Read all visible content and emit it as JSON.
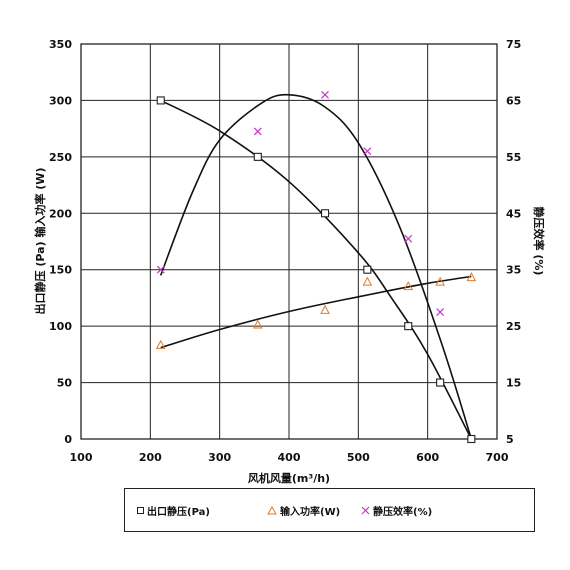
{
  "chart_data": {
    "type": "line",
    "title": "",
    "xlabel": "风机风量(m³/h)",
    "ylabel_left": "出口静压 (Pa) 输入功率 (W)",
    "ylabel_right": "静压效率 (%)",
    "xlim": [
      100,
      700
    ],
    "ylim_left": [
      0,
      350
    ],
    "ylim_right": [
      5,
      75
    ],
    "x_ticks": [
      "100",
      "200",
      "300",
      "400",
      "500",
      "600",
      "700"
    ],
    "y_left_ticks": [
      "0",
      "50",
      "100",
      "150",
      "200",
      "250",
      "300",
      "350"
    ],
    "y_right_ticks": [
      "5",
      "15",
      "25",
      "35",
      "45",
      "55",
      "65",
      "75"
    ],
    "grid": true,
    "legend_position": "bottom",
    "series": [
      {
        "name": "出口静压(Pa)",
        "axis": "left",
        "marker": "square",
        "color": "#222222",
        "x": [
          215,
          355,
          452,
          513,
          572,
          618,
          663
        ],
        "y": [
          300,
          250,
          200,
          150,
          100,
          50,
          0
        ]
      },
      {
        "name": "输入功率(W)",
        "axis": "left",
        "marker": "triangle",
        "color": "#e07a28",
        "x": [
          215,
          355,
          452,
          513,
          572,
          618,
          663
        ],
        "y": [
          83,
          101,
          114,
          139,
          135,
          139,
          143
        ]
      },
      {
        "name": "静压效率(%)",
        "axis": "right",
        "marker": "x",
        "color": "#cc33cc",
        "x": [
          215,
          355,
          452,
          513,
          572,
          618
        ],
        "y": [
          35,
          59.5,
          66,
          56,
          40.5,
          27.5
        ]
      }
    ],
    "fit_curves": [
      {
        "series": "出口静压(Pa)",
        "x": [
          215,
          300,
          400,
          500,
          550,
          600,
          663
        ],
        "y": [
          300,
          273,
          228,
          165,
          123,
          75,
          0
        ]
      },
      {
        "series": "输入功率(W)",
        "x": [
          215,
          300,
          400,
          500,
          600,
          663
        ],
        "y": [
          81,
          97,
          113,
          126,
          138,
          144
        ]
      },
      {
        "series": "静压效率(%)",
        "x": [
          215,
          260,
          300,
          360,
          400,
          450,
          500,
          560,
          620,
          663
        ],
        "y": [
          34,
          48.5,
          58,
          64.5,
          66,
          64,
          57.5,
          42.5,
          22,
          5
        ]
      }
    ]
  }
}
